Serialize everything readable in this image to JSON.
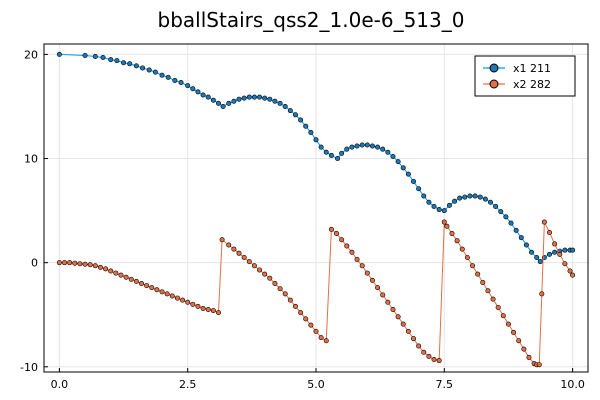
{
  "chart_data": {
    "type": "scatter",
    "title": "bballStairs_qss2_1.0e-6_513_0",
    "xlabel": "",
    "ylabel": "",
    "xlim": [
      -0.3,
      10.3
    ],
    "ylim": [
      -10.5,
      21
    ],
    "xticks": [
      0.0,
      2.5,
      5.0,
      7.5,
      10.0
    ],
    "xtick_labels": [
      "0.0",
      "2.5",
      "5.0",
      "7.5",
      "10.0"
    ],
    "yticks": [
      -10,
      0,
      10,
      20
    ],
    "ytick_labels": [
      "-10",
      "0",
      "10",
      "20"
    ],
    "grid": true,
    "legend_position": "top-right",
    "series": [
      {
        "name": "x1 211",
        "color": "#009AFA",
        "marker_color": "#1f77b4",
        "mode": "lines+markers",
        "x": [
          0.0,
          0.5,
          0.7,
          0.85,
          1.0,
          1.12,
          1.25,
          1.37,
          1.5,
          1.62,
          1.75,
          1.87,
          2.0,
          2.12,
          2.25,
          2.37,
          2.5,
          2.6,
          2.7,
          2.8,
          2.9,
          3.0,
          3.1,
          3.19,
          3.3,
          3.4,
          3.5,
          3.6,
          3.7,
          3.8,
          3.9,
          4.0,
          4.1,
          4.2,
          4.3,
          4.4,
          4.5,
          4.6,
          4.7,
          4.8,
          4.9,
          5.0,
          5.1,
          5.2,
          5.3,
          5.42,
          5.5,
          5.6,
          5.7,
          5.8,
          5.9,
          6.0,
          6.1,
          6.2,
          6.3,
          6.4,
          6.5,
          6.6,
          6.7,
          6.8,
          6.9,
          7.0,
          7.1,
          7.2,
          7.3,
          7.4,
          7.5,
          7.6,
          7.7,
          7.8,
          7.9,
          8.0,
          8.1,
          8.2,
          8.3,
          8.4,
          8.5,
          8.6,
          8.7,
          8.8,
          8.9,
          9.0,
          9.1,
          9.2,
          9.3,
          9.37,
          9.45,
          9.55,
          9.65,
          9.75,
          9.85,
          9.95,
          10.0
        ],
        "y": [
          20.0,
          19.9,
          19.8,
          19.7,
          19.5,
          19.4,
          19.2,
          19.1,
          18.9,
          18.7,
          18.5,
          18.3,
          18.0,
          17.8,
          17.5,
          17.3,
          17.0,
          16.7,
          16.4,
          16.1,
          15.9,
          15.6,
          15.3,
          15.0,
          15.3,
          15.5,
          15.7,
          15.8,
          15.9,
          15.9,
          15.9,
          15.8,
          15.7,
          15.5,
          15.3,
          15.0,
          14.6,
          14.2,
          13.7,
          13.1,
          12.5,
          11.8,
          11.1,
          10.6,
          10.3,
          10.0,
          10.5,
          10.9,
          11.1,
          11.2,
          11.3,
          11.3,
          11.2,
          11.1,
          10.9,
          10.6,
          10.2,
          9.7,
          9.1,
          8.5,
          7.8,
          7.1,
          6.4,
          5.8,
          5.4,
          5.1,
          5.0,
          5.5,
          5.9,
          6.2,
          6.3,
          6.4,
          6.4,
          6.3,
          6.1,
          5.8,
          5.4,
          4.9,
          4.4,
          3.8,
          3.1,
          2.4,
          1.7,
          1.0,
          0.5,
          0.1,
          0.5,
          0.8,
          1.0,
          1.1,
          1.2,
          1.2,
          1.2
        ]
      },
      {
        "name": "x2 282",
        "color": "#E26F46",
        "marker_color": "#E26F46",
        "mode": "lines+markers",
        "x": [
          0.0,
          0.1,
          0.2,
          0.3,
          0.4,
          0.5,
          0.6,
          0.7,
          0.8,
          0.9,
          1.0,
          1.1,
          1.2,
          1.3,
          1.4,
          1.5,
          1.6,
          1.7,
          1.8,
          1.9,
          2.0,
          2.1,
          2.2,
          2.3,
          2.4,
          2.5,
          2.6,
          2.7,
          2.8,
          2.9,
          3.0,
          3.1,
          3.17,
          3.3,
          3.4,
          3.5,
          3.6,
          3.7,
          3.8,
          3.9,
          4.0,
          4.1,
          4.2,
          4.3,
          4.4,
          4.5,
          4.6,
          4.7,
          4.8,
          4.9,
          5.0,
          5.1,
          5.2,
          5.3,
          5.4,
          5.5,
          5.6,
          5.7,
          5.8,
          5.9,
          6.0,
          6.1,
          6.2,
          6.3,
          6.4,
          6.5,
          6.6,
          6.7,
          6.8,
          6.9,
          7.0,
          7.1,
          7.2,
          7.3,
          7.4,
          7.5,
          7.55,
          7.65,
          7.75,
          7.85,
          7.95,
          8.05,
          8.15,
          8.25,
          8.35,
          8.45,
          8.55,
          8.65,
          8.75,
          8.85,
          8.95,
          9.05,
          9.15,
          9.25,
          9.3,
          9.35,
          9.4,
          9.45,
          9.55,
          9.65,
          9.75,
          9.85,
          9.95,
          10.0
        ],
        "y": [
          0.0,
          0.0,
          0.0,
          -0.05,
          -0.1,
          -0.15,
          -0.2,
          -0.3,
          -0.45,
          -0.6,
          -0.8,
          -1.0,
          -1.2,
          -1.4,
          -1.6,
          -1.8,
          -2.0,
          -2.2,
          -2.4,
          -2.6,
          -2.8,
          -3.0,
          -3.2,
          -3.4,
          -3.6,
          -3.8,
          -4.0,
          -4.2,
          -4.4,
          -4.5,
          -4.6,
          -4.8,
          2.2,
          1.7,
          1.3,
          0.9,
          0.5,
          0.1,
          -0.3,
          -0.7,
          -1.1,
          -1.5,
          -2.0,
          -2.5,
          -3.0,
          -3.6,
          -4.2,
          -4.8,
          -5.4,
          -6.0,
          -6.6,
          -7.2,
          -7.5,
          3.2,
          2.8,
          2.2,
          1.6,
          1.0,
          0.3,
          -0.3,
          -1.0,
          -1.7,
          -2.4,
          -3.1,
          -3.8,
          -4.5,
          -5.2,
          -5.9,
          -6.6,
          -7.3,
          -8.0,
          -8.6,
          -9.0,
          -9.3,
          -9.4,
          3.9,
          3.5,
          2.8,
          2.1,
          1.3,
          0.5,
          -0.3,
          -1.1,
          -1.9,
          -2.7,
          -3.5,
          -4.3,
          -5.1,
          -5.9,
          -6.7,
          -7.5,
          -8.3,
          -9.1,
          -9.7,
          -9.8,
          -9.8,
          -3.0,
          3.9,
          2.9,
          1.8,
          0.8,
          -0.1,
          -0.8,
          -1.2
        ]
      }
    ]
  }
}
